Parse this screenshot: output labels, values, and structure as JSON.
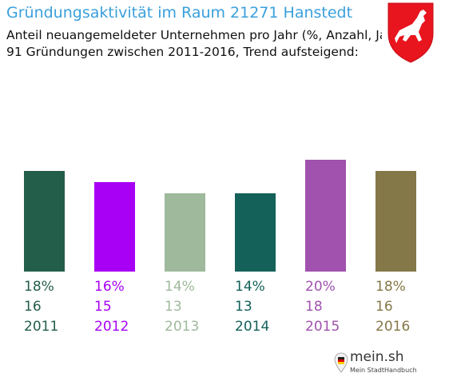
{
  "header": {
    "title": "Gründungsaktivität im Raum 21271 Hanstedt",
    "subtitle_line1": "Anteil neuangemeldeter Unternehmen pro Jahr (%, Anzahl, Jahr)",
    "subtitle_line2": "91 Gründungen zwischen 2011-2016, Trend aufsteigend:"
  },
  "brand": {
    "name": "mein.sh",
    "tagline": "Mein StadtHandbuch",
    "icon": "map-pin-icon"
  },
  "crest": {
    "icon": "white-horse-crest-icon",
    "colors": {
      "field": "#e8141e",
      "horse": "#ffffff"
    }
  },
  "chart_data": {
    "type": "bar",
    "categories": [
      "2011",
      "2012",
      "2013",
      "2014",
      "2015",
      "2016"
    ],
    "values": [
      18,
      16,
      14,
      14,
      20,
      18
    ],
    "counts": [
      "16",
      "15",
      "13",
      "13",
      "18",
      "16"
    ],
    "percent_labels": [
      "18%",
      "16%",
      "14%",
      "14%",
      "20%",
      "18%"
    ],
    "colors": [
      "#235e4a",
      "#a700f5",
      "#9eb99b",
      "#146159",
      "#a052ae",
      "#857848"
    ],
    "ylim": [
      0,
      20
    ]
  }
}
